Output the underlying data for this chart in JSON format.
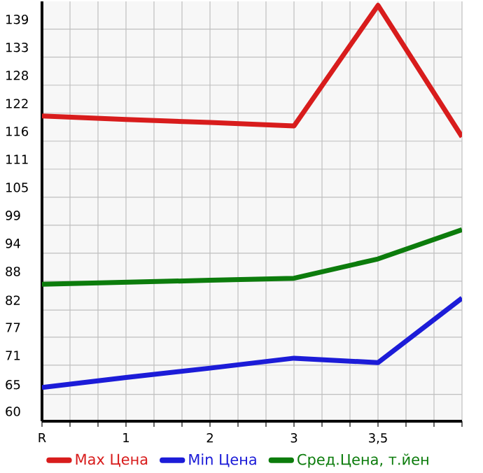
{
  "chart_data": {
    "type": "line",
    "categories": [
      "R",
      "1",
      "2",
      "3",
      "3,5",
      null
    ],
    "series": [
      {
        "name": "Max Цена",
        "color": "#d81c1c",
        "values": [
          121.5,
          120.8,
          120.2,
          119.5,
          143.8,
          117.3
        ]
      },
      {
        "name": "Min Цена",
        "color": "#1c1cd8",
        "values": [
          66.8,
          68.8,
          70.7,
          72.7,
          71.8,
          84.8
        ]
      },
      {
        "name": "Сред.Цена, т.йен",
        "color": "#0c7c0c",
        "values": [
          87.6,
          88.0,
          88.4,
          88.8,
          92.7,
          98.6
        ]
      }
    ],
    "ylim": [
      60,
      144.6
    ],
    "yticks": [
      60,
      {
        "value": 65.4,
        "label": "65"
      },
      {
        "value": 71.29,
        "label": "71"
      },
      {
        "value": 76.93,
        "label": "77"
      },
      {
        "value": 82.4,
        "label": "82"
      },
      {
        "value": 88.21,
        "label": "88"
      },
      {
        "value": 93.86,
        "label": "94"
      },
      {
        "value": 99.5,
        "label": "99"
      },
      {
        "value": 105.14,
        "label": "105"
      },
      {
        "value": 110.79,
        "label": "111"
      },
      {
        "value": 116.43,
        "label": "116"
      },
      {
        "value": 122.07,
        "label": "122"
      },
      {
        "value": 127.71,
        "label": "128"
      },
      {
        "value": 133.36,
        "label": "133"
      },
      139
    ],
    "grid": true,
    "legend": "bottom",
    "marker": "none",
    "line_style": "solid"
  }
}
